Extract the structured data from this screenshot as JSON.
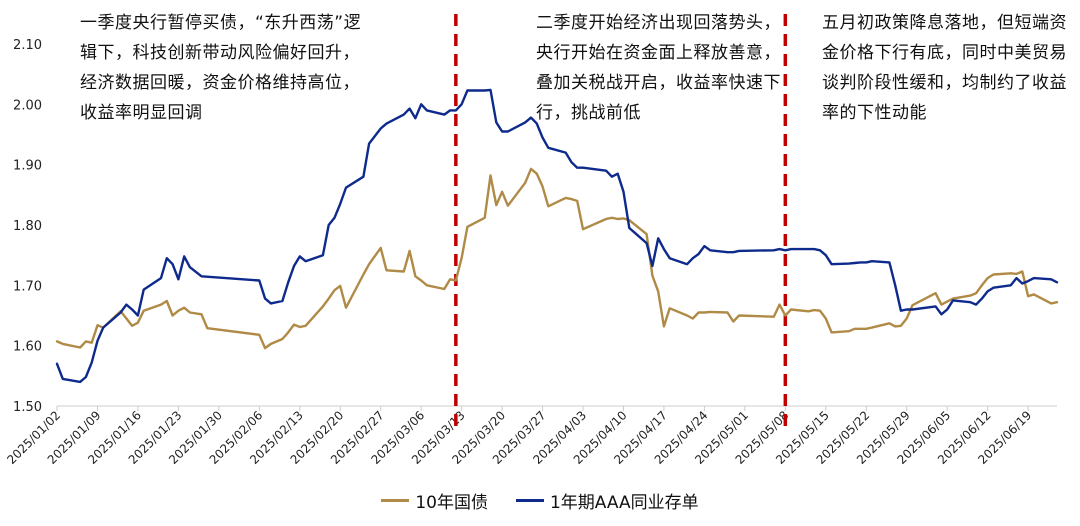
{
  "annotations": [
    "一季度央行暂停买债，“东升西荡”逻辑下，科技创新带动风险偏好回升，经济数据回暖，资金价格维持高位，收益率明显回调",
    "二季度开始经济出现回落势头，央行开始在资金面上释放善意，叠加关税战开启，收益率快速下行，挑战前低",
    "五月初政策降息落地，但短端资金价格下行有底，同时中美贸易谈判阶段性缓和，均制约了收益率的下性动能"
  ],
  "colors": {
    "cgb10": "#b08a47",
    "ncd1y": "#0e2a8c",
    "divider": "#c00000",
    "axis": "#cccccc"
  },
  "chart_data": {
    "type": "line",
    "ylim": [
      1.5,
      2.1
    ],
    "yticks": [
      "1.50",
      "1.60",
      "1.70",
      "1.80",
      "1.90",
      "2.00",
      "2.10"
    ],
    "x_start": "2025/01/02",
    "x_end": "2025/06/24",
    "xticks": [
      "2025/01/02",
      "2025/01/09",
      "2025/01/16",
      "2025/01/23",
      "2025/01/30",
      "2025/02/06",
      "2025/02/13",
      "2025/02/20",
      "2025/02/27",
      "2025/03/06",
      "2025/03/13",
      "2025/03/20",
      "2025/03/27",
      "2025/04/03",
      "2025/04/10",
      "2025/04/17",
      "2025/04/24",
      "2025/05/01",
      "2025/05/08",
      "2025/05/15",
      "2025/05/22",
      "2025/05/29",
      "2025/06/05",
      "2025/06/12",
      "2025/06/19"
    ],
    "dividers": [
      "2025/03/12",
      "2025/05/08"
    ],
    "legend": [
      "10年国债",
      "1年期AAA同业存单"
    ],
    "series": [
      {
        "name": "10年国债",
        "points": [
          [
            "2025/01/02",
            1.607
          ],
          [
            "2025/01/03",
            1.603
          ],
          [
            "2025/01/06",
            1.597
          ],
          [
            "2025/01/07",
            1.607
          ],
          [
            "2025/01/08",
            1.605
          ],
          [
            "2025/01/09",
            1.634
          ],
          [
            "2025/01/10",
            1.63
          ],
          [
            "2025/01/13",
            1.657
          ],
          [
            "2025/01/14",
            1.645
          ],
          [
            "2025/01/15",
            1.633
          ],
          [
            "2025/01/16",
            1.638
          ],
          [
            "2025/01/17",
            1.658
          ],
          [
            "2025/01/20",
            1.668
          ],
          [
            "2025/01/21",
            1.674
          ],
          [
            "2025/01/22",
            1.65
          ],
          [
            "2025/01/23",
            1.658
          ],
          [
            "2025/01/24",
            1.663
          ],
          [
            "2025/01/25",
            1.655
          ],
          [
            "2025/01/27",
            1.652
          ],
          [
            "2025/01/28",
            1.629
          ],
          [
            "2025/02/06",
            1.618
          ],
          [
            "2025/02/07",
            1.596
          ],
          [
            "2025/02/08",
            1.603
          ],
          [
            "2025/02/10",
            1.611
          ],
          [
            "2025/02/11",
            1.622
          ],
          [
            "2025/02/12",
            1.635
          ],
          [
            "2025/02/13",
            1.631
          ],
          [
            "2025/02/14",
            1.633
          ],
          [
            "2025/02/17",
            1.665
          ],
          [
            "2025/02/18",
            1.678
          ],
          [
            "2025/02/19",
            1.692
          ],
          [
            "2025/02/20",
            1.699
          ],
          [
            "2025/02/21",
            1.663
          ],
          [
            "2025/02/24",
            1.718
          ],
          [
            "2025/02/25",
            1.735
          ],
          [
            "2025/02/27",
            1.762
          ],
          [
            "2025/02/28",
            1.725
          ],
          [
            "2025/03/03",
            1.723
          ],
          [
            "2025/03/04",
            1.757
          ],
          [
            "2025/03/05",
            1.715
          ],
          [
            "2025/03/06",
            1.708
          ],
          [
            "2025/03/07",
            1.7
          ],
          [
            "2025/03/10",
            1.694
          ],
          [
            "2025/03/11",
            1.71
          ],
          [
            "2025/03/12",
            1.708
          ],
          [
            "2025/03/13",
            1.745
          ],
          [
            "2025/03/14",
            1.797
          ],
          [
            "2025/03/17",
            1.812
          ],
          [
            "2025/03/18",
            1.882
          ],
          [
            "2025/03/19",
            1.833
          ],
          [
            "2025/03/20",
            1.855
          ],
          [
            "2025/03/21",
            1.832
          ],
          [
            "2025/03/24",
            1.87
          ],
          [
            "2025/03/25",
            1.893
          ],
          [
            "2025/03/26",
            1.885
          ],
          [
            "2025/03/27",
            1.864
          ],
          [
            "2025/03/28",
            1.831
          ],
          [
            "2025/03/31",
            1.845
          ],
          [
            "2025/04/01",
            1.843
          ],
          [
            "2025/04/02",
            1.84
          ],
          [
            "2025/04/03",
            1.793
          ],
          [
            "2025/04/07",
            1.81
          ],
          [
            "2025/04/08",
            1.812
          ],
          [
            "2025/04/09",
            1.81
          ],
          [
            "2025/04/10",
            1.811
          ],
          [
            "2025/04/11",
            1.808
          ],
          [
            "2025/04/14",
            1.785
          ],
          [
            "2025/04/15",
            1.716
          ],
          [
            "2025/04/16",
            1.69
          ],
          [
            "2025/04/17",
            1.632
          ],
          [
            "2025/04/18",
            1.662
          ],
          [
            "2025/04/21",
            1.65
          ],
          [
            "2025/04/22",
            1.645
          ],
          [
            "2025/04/23",
            1.655
          ],
          [
            "2025/04/24",
            1.655
          ],
          [
            "2025/04/25",
            1.656
          ],
          [
            "2025/04/28",
            1.655
          ],
          [
            "2025/04/29",
            1.64
          ],
          [
            "2025/04/30",
            1.65
          ],
          [
            "2025/05/06",
            1.648
          ],
          [
            "2025/05/07",
            1.668
          ],
          [
            "2025/05/08",
            1.65
          ],
          [
            "2025/05/09",
            1.66
          ],
          [
            "2025/05/12",
            1.657
          ],
          [
            "2025/05/13",
            1.659
          ],
          [
            "2025/05/14",
            1.658
          ],
          [
            "2025/05/15",
            1.645
          ],
          [
            "2025/05/16",
            1.622
          ],
          [
            "2025/05/19",
            1.624
          ],
          [
            "2025/05/20",
            1.628
          ],
          [
            "2025/05/21",
            1.628
          ],
          [
            "2025/05/22",
            1.628
          ],
          [
            "2025/05/23",
            1.63
          ],
          [
            "2025/05/26",
            1.637
          ],
          [
            "2025/05/27",
            1.632
          ],
          [
            "2025/05/28",
            1.633
          ],
          [
            "2025/05/29",
            1.645
          ],
          [
            "2025/05/30",
            1.667
          ],
          [
            "2025/06/03",
            1.687
          ],
          [
            "2025/06/04",
            1.668
          ],
          [
            "2025/06/05",
            1.673
          ],
          [
            "2025/06/06",
            1.678
          ],
          [
            "2025/06/09",
            1.683
          ],
          [
            "2025/06/10",
            1.687
          ],
          [
            "2025/06/11",
            1.7
          ],
          [
            "2025/06/12",
            1.712
          ],
          [
            "2025/06/13",
            1.718
          ],
          [
            "2025/06/16",
            1.72
          ],
          [
            "2025/06/17",
            1.719
          ],
          [
            "2025/06/18",
            1.723
          ],
          [
            "2025/06/19",
            1.682
          ],
          [
            "2025/06/20",
            1.685
          ],
          [
            "2025/06/23",
            1.67
          ],
          [
            "2025/06/24",
            1.672
          ]
        ]
      },
      {
        "name": "1年期AAA同业存单",
        "points": [
          [
            "2025/01/02",
            1.57
          ],
          [
            "2025/01/03",
            1.545
          ],
          [
            "2025/01/06",
            1.54
          ],
          [
            "2025/01/07",
            1.548
          ],
          [
            "2025/01/08",
            1.572
          ],
          [
            "2025/01/09",
            1.608
          ],
          [
            "2025/01/10",
            1.63
          ],
          [
            "2025/01/13",
            1.655
          ],
          [
            "2025/01/14",
            1.668
          ],
          [
            "2025/01/15",
            1.66
          ],
          [
            "2025/01/16",
            1.65
          ],
          [
            "2025/01/17",
            1.693
          ],
          [
            "2025/01/20",
            1.712
          ],
          [
            "2025/01/21",
            1.745
          ],
          [
            "2025/01/22",
            1.735
          ],
          [
            "2025/01/23",
            1.71
          ],
          [
            "2025/01/24",
            1.748
          ],
          [
            "2025/01/25",
            1.73
          ],
          [
            "2025/01/27",
            1.715
          ],
          [
            "2025/02/06",
            1.708
          ],
          [
            "2025/02/07",
            1.678
          ],
          [
            "2025/02/08",
            1.67
          ],
          [
            "2025/02/10",
            1.674
          ],
          [
            "2025/02/11",
            1.705
          ],
          [
            "2025/02/12",
            1.732
          ],
          [
            "2025/02/13",
            1.748
          ],
          [
            "2025/02/14",
            1.74
          ],
          [
            "2025/02/17",
            1.75
          ],
          [
            "2025/02/18",
            1.8
          ],
          [
            "2025/02/19",
            1.812
          ],
          [
            "2025/02/20",
            1.835
          ],
          [
            "2025/02/21",
            1.862
          ],
          [
            "2025/02/24",
            1.88
          ],
          [
            "2025/02/25",
            1.935
          ],
          [
            "2025/02/27",
            1.96
          ],
          [
            "2025/02/28",
            1.968
          ],
          [
            "2025/03/03",
            1.983
          ],
          [
            "2025/03/04",
            1.993
          ],
          [
            "2025/03/05",
            1.977
          ],
          [
            "2025/03/06",
            2.0
          ],
          [
            "2025/03/07",
            1.99
          ],
          [
            "2025/03/10",
            1.983
          ],
          [
            "2025/03/11",
            1.99
          ],
          [
            "2025/03/12",
            1.99
          ],
          [
            "2025/03/13",
            2.0
          ],
          [
            "2025/03/14",
            2.023
          ],
          [
            "2025/03/17",
            2.023
          ],
          [
            "2025/03/18",
            2.024
          ],
          [
            "2025/03/19",
            1.97
          ],
          [
            "2025/03/20",
            1.955
          ],
          [
            "2025/03/21",
            1.955
          ],
          [
            "2025/03/24",
            1.97
          ],
          [
            "2025/03/25",
            1.978
          ],
          [
            "2025/03/26",
            1.968
          ],
          [
            "2025/03/27",
            1.945
          ],
          [
            "2025/03/28",
            1.928
          ],
          [
            "2025/03/31",
            1.92
          ],
          [
            "2025/04/01",
            1.904
          ],
          [
            "2025/04/02",
            1.895
          ],
          [
            "2025/04/03",
            1.895
          ],
          [
            "2025/04/07",
            1.89
          ],
          [
            "2025/04/08",
            1.88
          ],
          [
            "2025/04/09",
            1.885
          ],
          [
            "2025/04/10",
            1.855
          ],
          [
            "2025/04/11",
            1.795
          ],
          [
            "2025/04/14",
            1.77
          ],
          [
            "2025/04/15",
            1.732
          ],
          [
            "2025/04/16",
            1.778
          ],
          [
            "2025/04/17",
            1.76
          ],
          [
            "2025/04/18",
            1.745
          ],
          [
            "2025/04/21",
            1.735
          ],
          [
            "2025/04/22",
            1.745
          ],
          [
            "2025/04/23",
            1.752
          ],
          [
            "2025/04/24",
            1.765
          ],
          [
            "2025/04/25",
            1.758
          ],
          [
            "2025/04/28",
            1.755
          ],
          [
            "2025/04/29",
            1.755
          ],
          [
            "2025/04/30",
            1.757
          ],
          [
            "2025/05/06",
            1.758
          ],
          [
            "2025/05/07",
            1.76
          ],
          [
            "2025/05/08",
            1.758
          ],
          [
            "2025/05/09",
            1.76
          ],
          [
            "2025/05/12",
            1.76
          ],
          [
            "2025/05/13",
            1.76
          ],
          [
            "2025/05/14",
            1.758
          ],
          [
            "2025/05/15",
            1.75
          ],
          [
            "2025/05/16",
            1.735
          ],
          [
            "2025/05/19",
            1.736
          ],
          [
            "2025/05/20",
            1.737
          ],
          [
            "2025/05/21",
            1.738
          ],
          [
            "2025/05/22",
            1.738
          ],
          [
            "2025/05/23",
            1.74
          ],
          [
            "2025/05/26",
            1.738
          ],
          [
            "2025/05/27",
            1.7
          ],
          [
            "2025/05/28",
            1.658
          ],
          [
            "2025/05/29",
            1.66
          ],
          [
            "2025/05/30",
            1.66
          ],
          [
            "2025/06/03",
            1.665
          ],
          [
            "2025/06/04",
            1.652
          ],
          [
            "2025/06/05",
            1.66
          ],
          [
            "2025/06/06",
            1.675
          ],
          [
            "2025/06/09",
            1.672
          ],
          [
            "2025/06/10",
            1.668
          ],
          [
            "2025/06/11",
            1.678
          ],
          [
            "2025/06/12",
            1.69
          ],
          [
            "2025/06/13",
            1.696
          ],
          [
            "2025/06/16",
            1.7
          ],
          [
            "2025/06/17",
            1.712
          ],
          [
            "2025/06/18",
            1.703
          ],
          [
            "2025/06/19",
            1.707
          ],
          [
            "2025/06/20",
            1.712
          ],
          [
            "2025/06/23",
            1.71
          ],
          [
            "2025/06/24",
            1.705
          ]
        ]
      }
    ]
  }
}
